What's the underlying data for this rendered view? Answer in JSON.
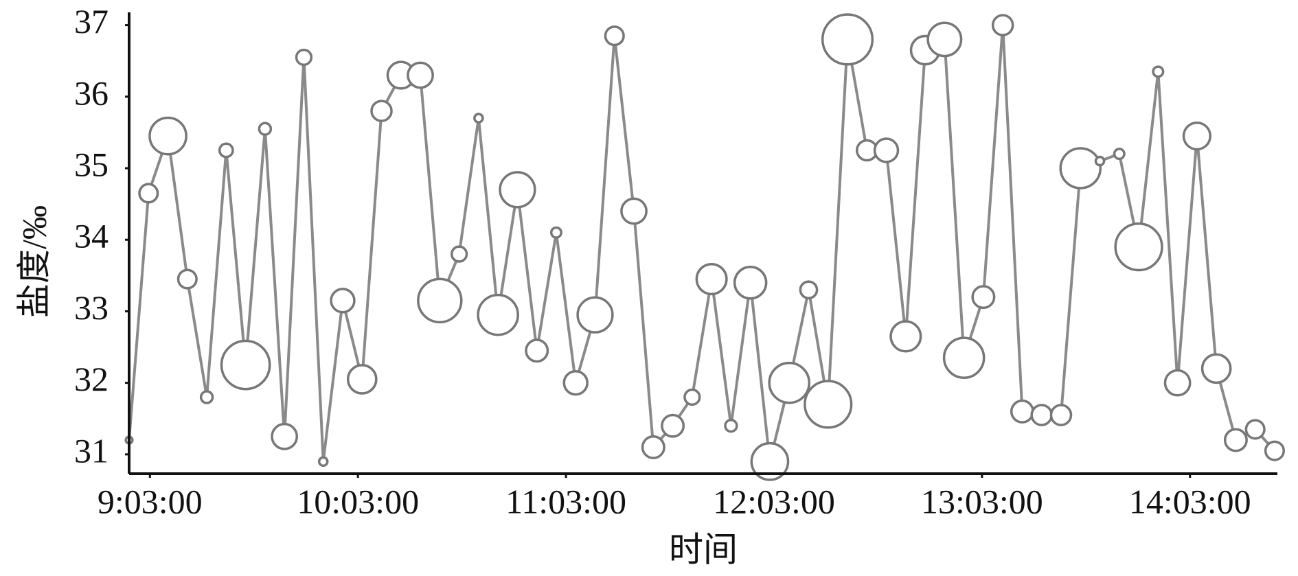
{
  "chart_data": {
    "type": "line",
    "x_label": "时间",
    "y_label": "盐度/‰",
    "x": [
      537,
      542.6,
      548.2,
      553.8,
      559.4,
      565,
      570.6,
      576.2,
      581.8,
      587.4,
      593,
      598.6,
      604.2,
      609.8,
      615.4,
      621,
      626.6,
      632.2,
      637.8,
      643.4,
      649,
      654.6,
      660.2,
      665.8,
      671.4,
      677,
      682.6,
      688.2,
      693.8,
      699.4,
      705,
      710.6,
      716.2,
      721.8,
      727.4,
      733,
      738.6,
      744.2,
      749.8,
      755.4,
      761,
      766.6,
      772.2,
      777.8,
      783.4,
      789,
      794.6,
      800.2,
      805.8,
      811.4,
      817,
      822.6,
      828.2,
      833.8,
      839.4,
      845,
      850.6,
      856.2,
      861.8,
      867.4
    ],
    "series": [
      {
        "color": "#8a8a8a",
        "values": [
          31.2,
          34.65,
          35.45,
          33.45,
          31.8,
          35.25,
          32.25,
          35.55,
          31.25,
          36.55,
          30.9,
          33.15,
          32.05,
          35.8,
          36.3,
          36.3,
          33.15,
          33.8,
          35.7,
          32.95,
          34.7,
          32.45,
          34.1,
          32.0,
          32.95,
          36.85,
          34.4,
          31.1,
          31.4,
          31.8,
          33.45,
          31.4,
          33.4,
          30.9,
          32.0,
          33.3,
          31.7,
          36.8,
          35.25,
          35.25,
          32.65,
          36.65,
          36.8,
          32.35,
          33.2,
          37.0,
          31.6,
          31.55,
          31.55,
          35.0,
          35.1,
          35.2,
          33.9,
          36.35,
          32.0,
          35.45,
          32.2,
          31.2,
          31.35,
          31.05
        ],
        "sizes": [
          4,
          11,
          22,
          11,
          7,
          8,
          29,
          7,
          15,
          9,
          5,
          14,
          17,
          12,
          16,
          15,
          26,
          9,
          5,
          24,
          21,
          13,
          6,
          14,
          21,
          11,
          15,
          13,
          13,
          9,
          18,
          7,
          19,
          22,
          24,
          10,
          28,
          30,
          12,
          14,
          18,
          17,
          20,
          24,
          13,
          12,
          13,
          12,
          12,
          24,
          5,
          6,
          28,
          6,
          15,
          16,
          17,
          13,
          11,
          11
        ]
      }
    ],
    "xlim": [
      537,
      868.2
    ],
    "xticks": [
      {
        "value": 543,
        "label": "9:03:00"
      },
      {
        "value": 603,
        "label": "10:03:00"
      },
      {
        "value": 663,
        "label": "11:03:00"
      },
      {
        "value": 723,
        "label": "12:03:00"
      },
      {
        "value": 783,
        "label": "13:03:00"
      },
      {
        "value": 843,
        "label": "14:03:00"
      }
    ],
    "ylim": [
      30.73,
      37.14
    ],
    "yticks": [
      31,
      32,
      33,
      34,
      35,
      36,
      37
    ]
  }
}
